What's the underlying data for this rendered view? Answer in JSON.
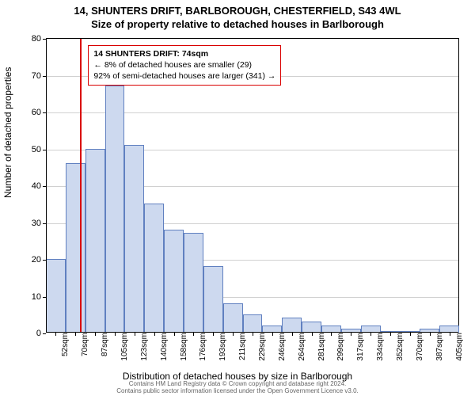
{
  "title_line1": "14, SHUNTERS DRIFT, BARLBOROUGH, CHESTERFIELD, S43 4WL",
  "title_line2": "Size of property relative to detached houses in Barlborough",
  "ylabel": "Number of detached properties",
  "xlabel": "Distribution of detached houses by size in Barlborough",
  "chart": {
    "type": "histogram",
    "ylim": [
      0,
      80
    ],
    "ytick_step": 10,
    "background_color": "#ffffff",
    "grid_color": "#d0d0d0",
    "axis_color": "#000000",
    "bar_fill": "#cdd9ef",
    "bar_border": "#6080c0",
    "title_fontsize": 13,
    "label_fontsize": 12,
    "tick_fontsize": 10,
    "x_categories": [
      "52sqm",
      "70sqm",
      "87sqm",
      "105sqm",
      "123sqm",
      "140sqm",
      "158sqm",
      "176sqm",
      "193sqm",
      "211sqm",
      "229sqm",
      "246sqm",
      "264sqm",
      "281sqm",
      "299sqm",
      "317sqm",
      "334sqm",
      "352sqm",
      "370sqm",
      "387sqm",
      "405sqm"
    ],
    "values": [
      20,
      46,
      50,
      67,
      51,
      35,
      28,
      27,
      18,
      8,
      5,
      2,
      4,
      3,
      2,
      1,
      2,
      0,
      0,
      1,
      2
    ],
    "reference_line": {
      "position_sqm": 74,
      "color": "#d90000",
      "width": 2
    },
    "annotation": {
      "border_color": "#d90000",
      "lines": [
        "14 SHUNTERS DRIFT: 74sqm",
        "← 8% of detached houses are smaller (29)",
        "92% of semi-detached houses are larger (341) →"
      ],
      "bold_first": true
    }
  },
  "footer_lines": [
    "Contains HM Land Registry data © Crown copyright and database right 2024.",
    "Contains public sector information licensed under the Open Government Licence v3.0."
  ]
}
